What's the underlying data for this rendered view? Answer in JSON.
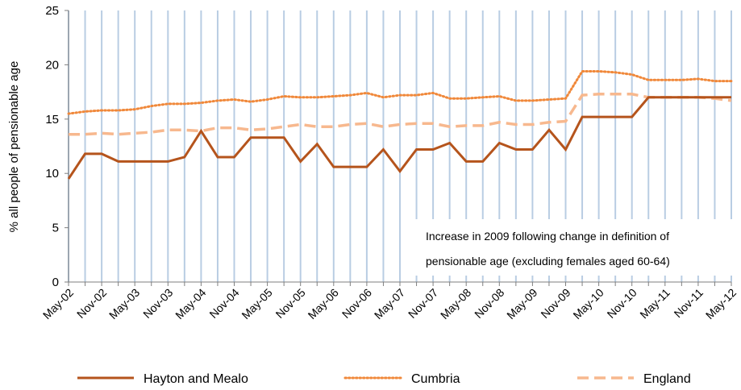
{
  "chart_data": {
    "type": "line",
    "ylabel": "% all people of pensionable age",
    "xlabel": "",
    "ylim": [
      0,
      25
    ],
    "yticks": [
      "0",
      "5",
      "10",
      "15",
      "20",
      "25"
    ],
    "x": [
      "May-02",
      "Aug-02",
      "Nov-02",
      "Feb-03",
      "May-03",
      "Aug-03",
      "Nov-03",
      "Feb-04",
      "May-04",
      "Aug-04",
      "Nov-04",
      "Feb-05",
      "May-05",
      "Aug-05",
      "Nov-05",
      "Feb-06",
      "May-06",
      "Aug-06",
      "Nov-06",
      "Feb-07",
      "May-07",
      "Aug-07",
      "Nov-07",
      "Feb-08",
      "May-08",
      "Aug-08",
      "Nov-08",
      "Feb-09",
      "May-09",
      "Aug-09",
      "Nov-09",
      "Feb-10",
      "May-10",
      "Aug-10",
      "Nov-10",
      "Feb-11",
      "May-11",
      "Aug-11",
      "Nov-11",
      "Feb-12",
      "May-12"
    ],
    "x_tick_labels": [
      "May-02",
      "Nov-02",
      "May-03",
      "Nov-03",
      "May-04",
      "Nov-04",
      "May-05",
      "Nov-05",
      "May-06",
      "Nov-06",
      "May-07",
      "Nov-07",
      "May-08",
      "Nov-08",
      "May-09",
      "Nov-09",
      "May-10",
      "Nov-10",
      "May-11",
      "Nov-11",
      "May-12"
    ],
    "series": [
      {
        "name": "Hayton and Mealo",
        "style": "solid",
        "color": "#b5541c",
        "values": [
          9.5,
          11.8,
          11.8,
          11.1,
          11.1,
          11.1,
          11.1,
          11.5,
          13.9,
          11.5,
          11.5,
          13.3,
          13.3,
          13.3,
          11.1,
          12.7,
          10.6,
          10.6,
          10.6,
          12.2,
          10.2,
          12.2,
          12.2,
          12.8,
          11.1,
          11.1,
          12.8,
          12.2,
          12.2,
          14.0,
          12.2,
          15.2,
          15.2,
          15.2,
          15.2,
          17.0,
          17.0,
          17.0,
          17.0,
          17.0,
          17.0
        ]
      },
      {
        "name": "Cumbria",
        "style": "dotted",
        "color": "#f0883a",
        "values": [
          15.5,
          15.7,
          15.8,
          15.8,
          15.9,
          16.2,
          16.4,
          16.4,
          16.5,
          16.7,
          16.8,
          16.6,
          16.8,
          17.1,
          17.0,
          17.0,
          17.1,
          17.2,
          17.4,
          17.0,
          17.2,
          17.2,
          17.4,
          16.9,
          16.9,
          17.0,
          17.1,
          16.7,
          16.7,
          16.8,
          16.9,
          19.4,
          19.4,
          19.3,
          19.1,
          18.6,
          18.6,
          18.6,
          18.7,
          18.5,
          18.5
        ]
      },
      {
        "name": "England",
        "style": "dashed",
        "color": "#f7b88e",
        "values": [
          13.6,
          13.6,
          13.7,
          13.6,
          13.7,
          13.8,
          14.0,
          14.0,
          13.9,
          14.2,
          14.2,
          14.0,
          14.1,
          14.3,
          14.5,
          14.3,
          14.3,
          14.5,
          14.6,
          14.3,
          14.5,
          14.6,
          14.6,
          14.3,
          14.4,
          14.4,
          14.7,
          14.5,
          14.5,
          14.7,
          14.8,
          17.2,
          17.3,
          17.3,
          17.3,
          17.0,
          17.0,
          17.0,
          17.0,
          16.9,
          16.7
        ]
      }
    ],
    "annotation": [
      "Increase in 2009 following change in definition of",
      "pensionable age (excluding females aged 60-64)"
    ],
    "grid": "vertical",
    "legend_position": "bottom",
    "colors": {
      "gridline": "#b9cde3",
      "axis": "#7f7f7f"
    }
  }
}
